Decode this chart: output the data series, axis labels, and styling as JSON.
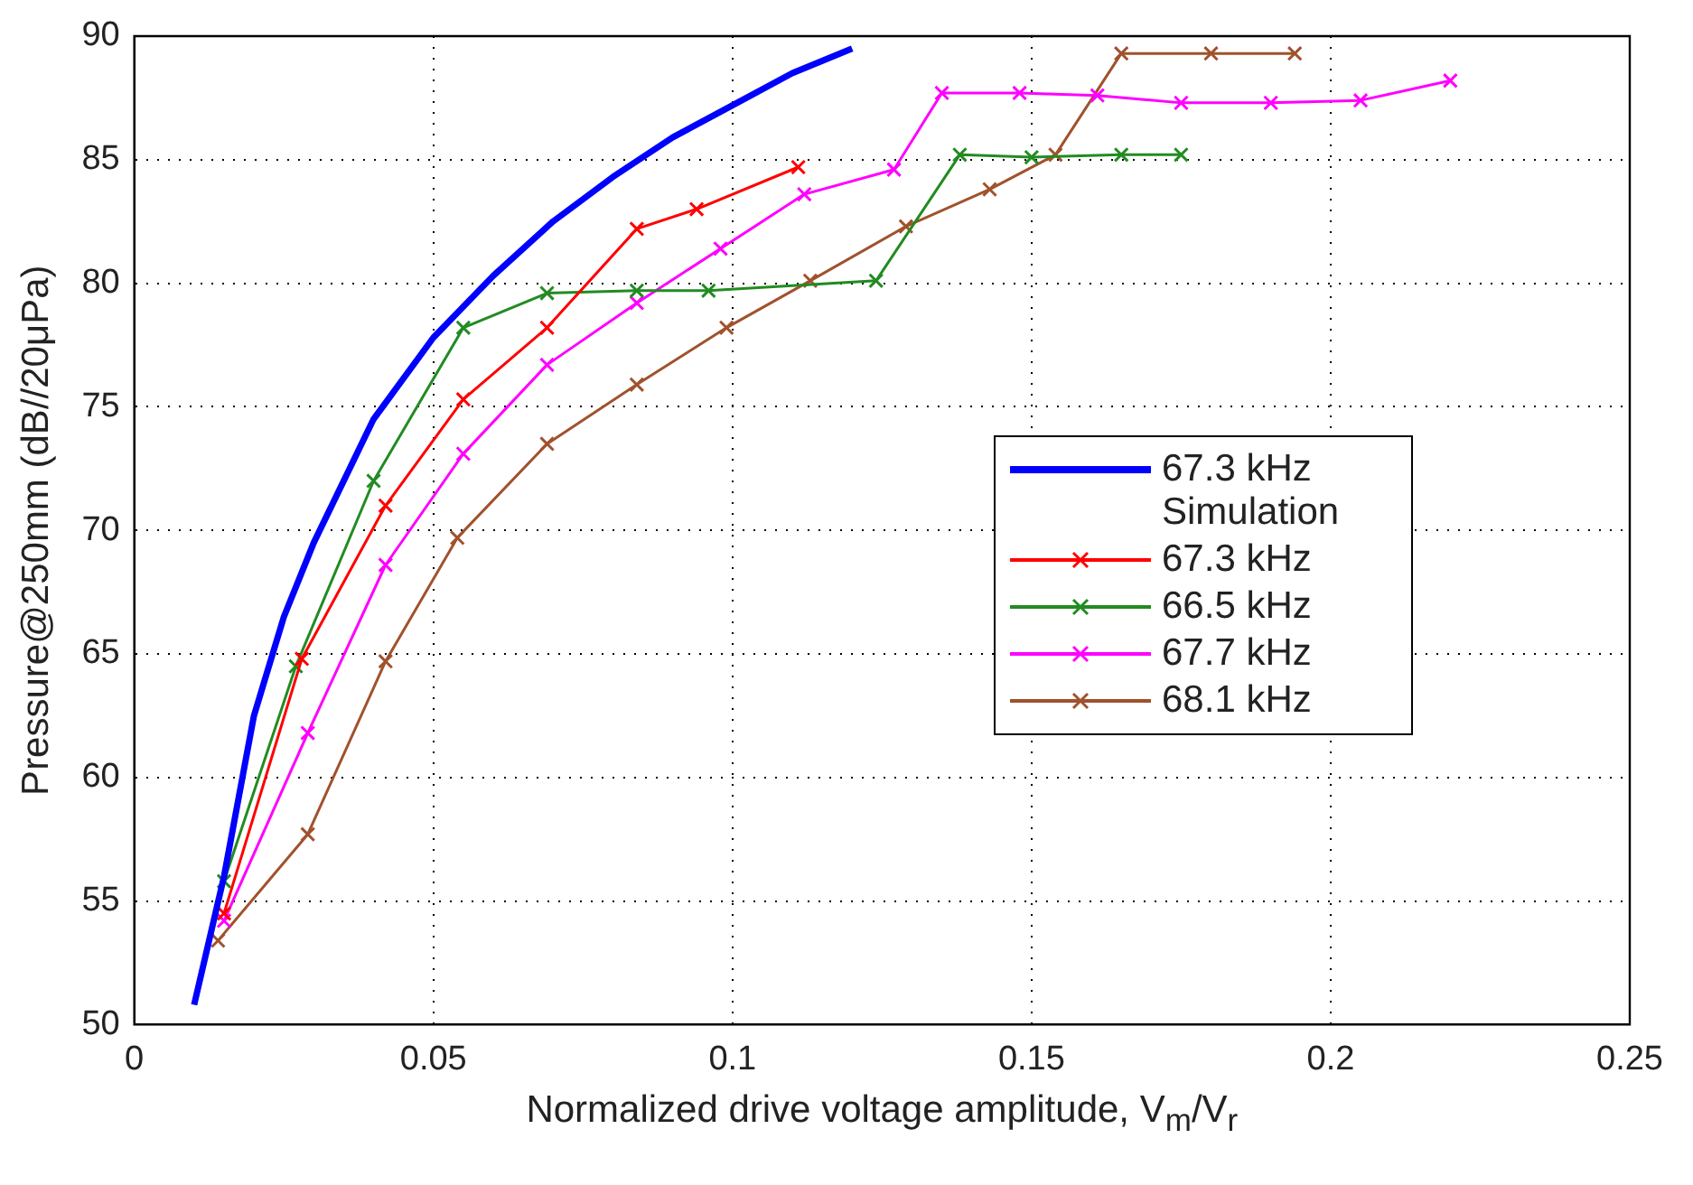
{
  "chart_data": {
    "type": "line",
    "xlabel": "Normalized drive voltage amplitude, V$_{m}$/V$_{r}$",
    "ylabel": "Pressure@250mm (dB//20μPa)",
    "xlim": [
      0,
      0.25
    ],
    "xticks": [
      0,
      0.05,
      0.1,
      0.15,
      0.2,
      0.25
    ],
    "ylim": [
      50,
      90
    ],
    "yticks": [
      50,
      55,
      60,
      65,
      70,
      75,
      80,
      85,
      90
    ],
    "grid": true,
    "legend": "center right",
    "marker": "cross",
    "line_style": "solid",
    "series": [
      {
        "name": "67.3 kHz Simulation",
        "color": "#0000ff",
        "marker": "none",
        "x": [
          0.01,
          0.015,
          0.02,
          0.025,
          0.03,
          0.04,
          0.05,
          0.06,
          0.07,
          0.08,
          0.09,
          0.1,
          0.11,
          0.12
        ],
        "values": [
          50.8,
          56,
          62.5,
          66.5,
          69.5,
          74.5,
          77.8,
          80.3,
          82.5,
          84.3,
          85.9,
          87.2,
          88.5,
          89.5
        ]
      },
      {
        "name": "67.3 kHz",
        "color": "#ff0000",
        "x": [
          0.015,
          0.028,
          0.042,
          0.055,
          0.069,
          0.084,
          0.094,
          0.111
        ],
        "values": [
          54.5,
          64.8,
          71,
          75.3,
          78.2,
          82.2,
          83,
          84.7
        ]
      },
      {
        "name": "66.5 kHz",
        "color": "#228b22",
        "x": [
          0.015,
          0.027,
          0.04,
          0.055,
          0.069,
          0.084,
          0.096,
          0.124,
          0.138,
          0.15,
          0.165,
          0.175
        ],
        "values": [
          55.8,
          64.5,
          72,
          78.2,
          79.6,
          79.7,
          79.7,
          80.1,
          85.2,
          85.1,
          85.2,
          85.2
        ]
      },
      {
        "name": "67.7 kHz",
        "color": "#ff00ff",
        "x": [
          0.015,
          0.029,
          0.042,
          0.055,
          0.069,
          0.084,
          0.098,
          0.112,
          0.127,
          0.135,
          0.148,
          0.161,
          0.175,
          0.19,
          0.205,
          0.22
        ],
        "values": [
          54.2,
          61.8,
          68.6,
          73.1,
          76.7,
          79.2,
          81.4,
          83.6,
          84.6,
          87.7,
          87.7,
          87.6,
          87.3,
          87.3,
          87.4,
          88.2
        ]
      },
      {
        "name": "68.1 kHz",
        "color": "#a0522d",
        "x": [
          0.014,
          0.029,
          0.042,
          0.054,
          0.069,
          0.084,
          0.099,
          0.113,
          0.129,
          0.143,
          0.154,
          0.165,
          0.18,
          0.194
        ],
        "values": [
          53.4,
          57.7,
          64.7,
          69.7,
          73.5,
          75.9,
          78.2,
          80.1,
          82.3,
          83.8,
          85.2,
          89.3,
          89.3,
          89.3
        ]
      }
    ]
  }
}
